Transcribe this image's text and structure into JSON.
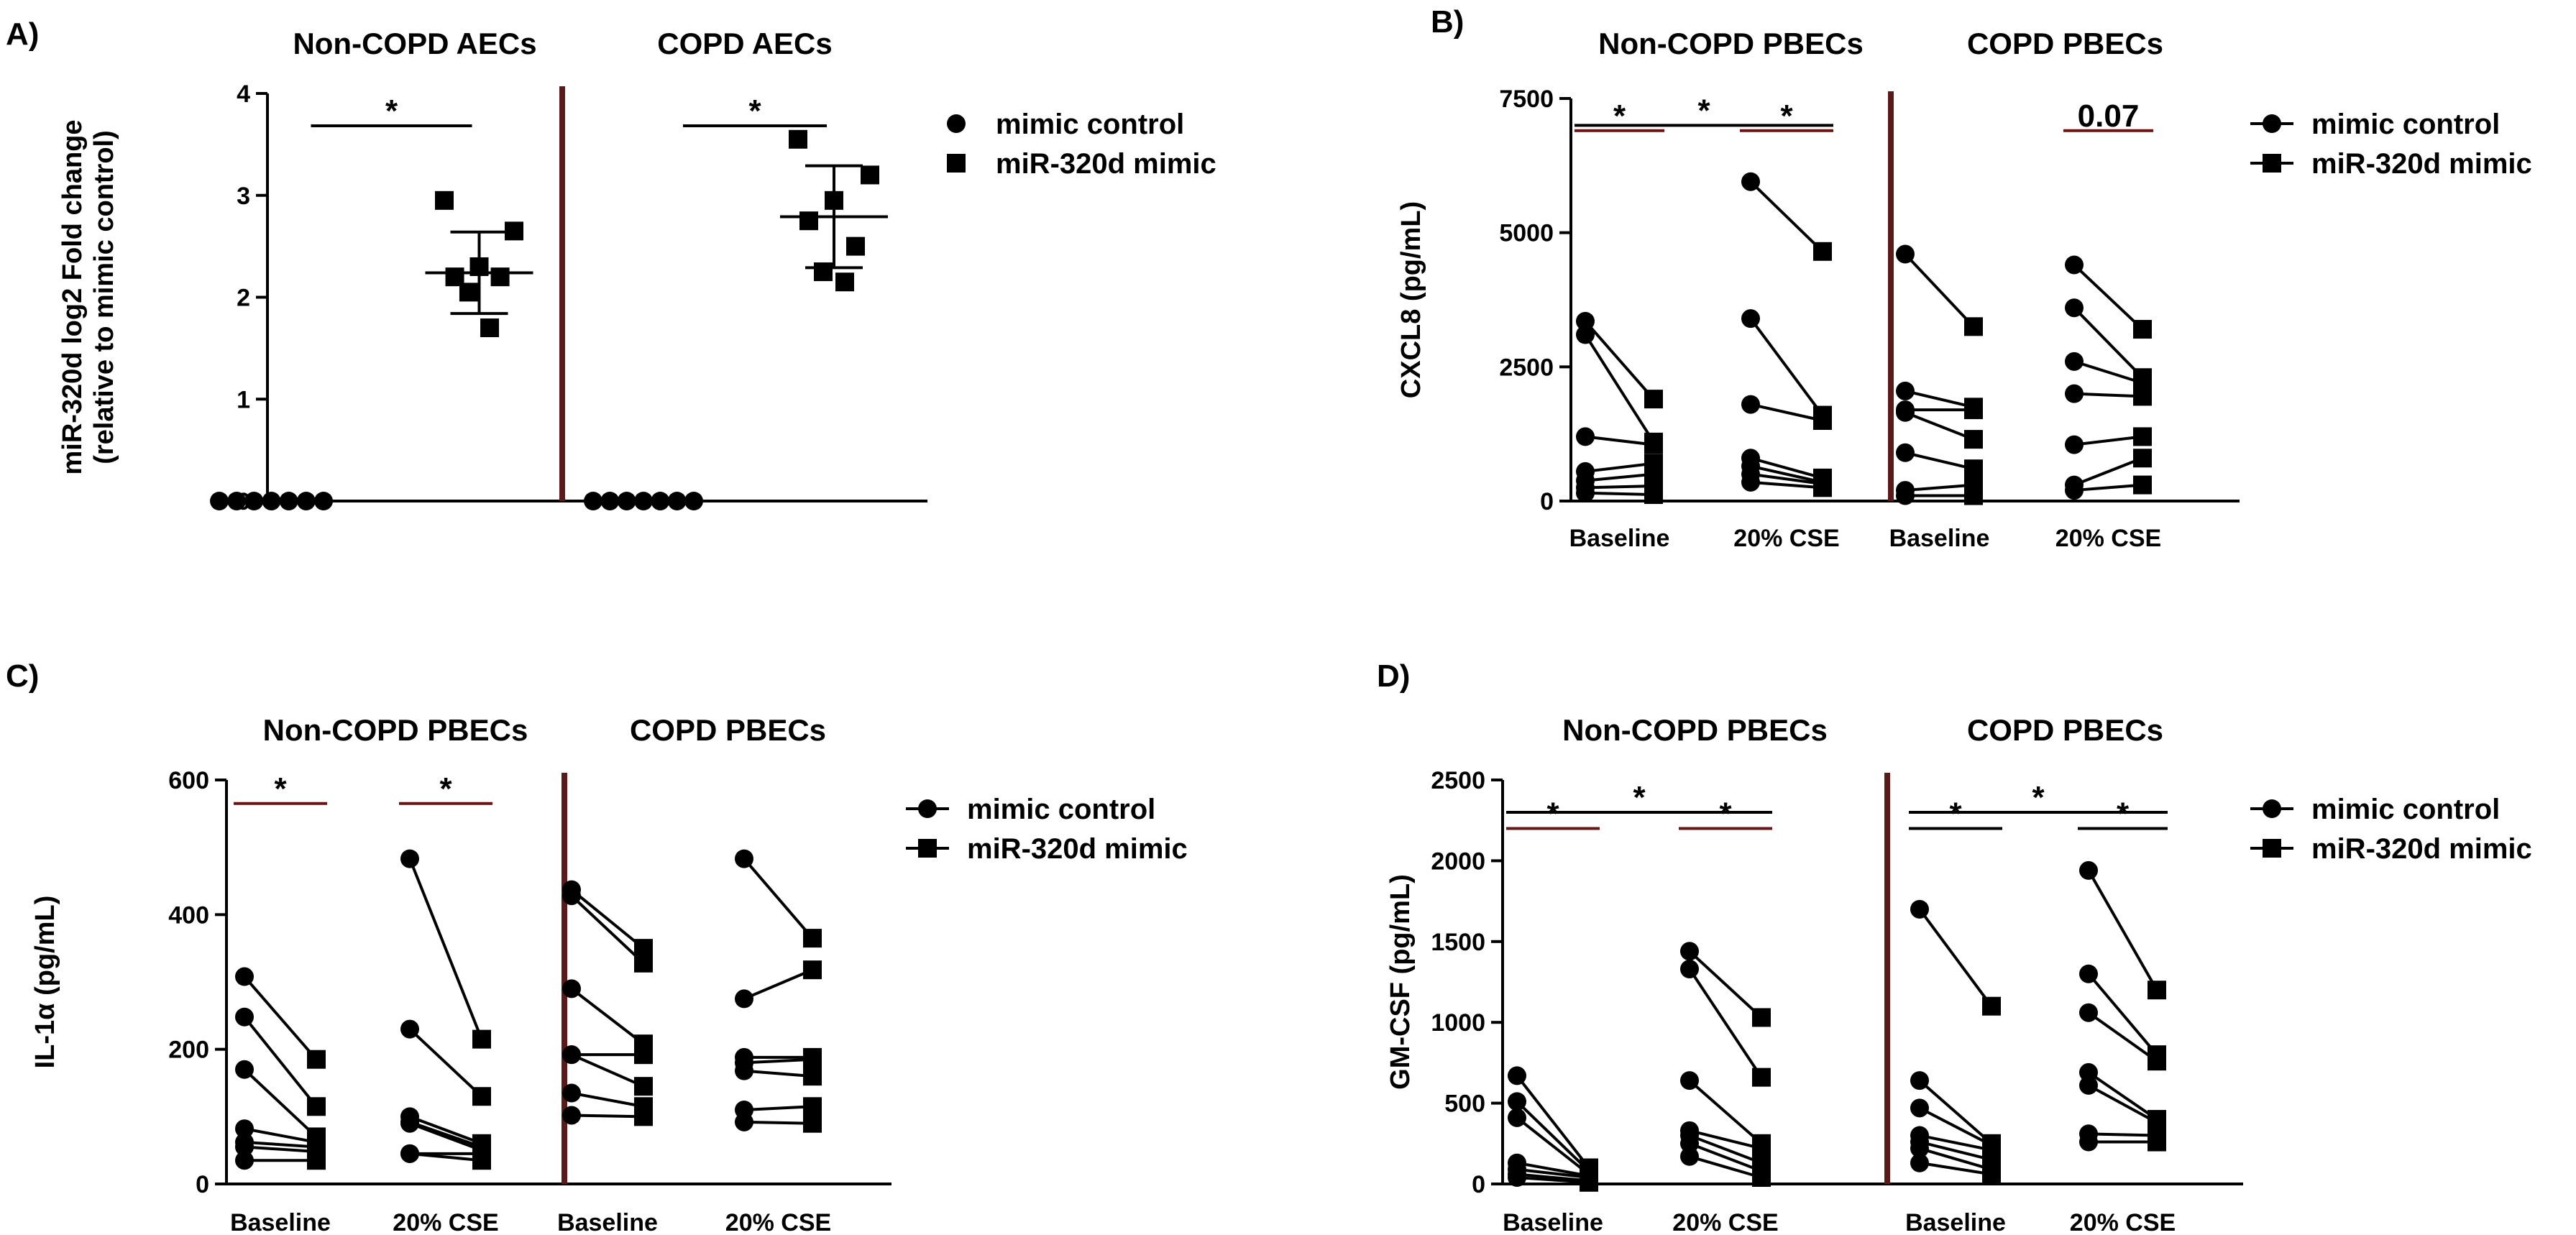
{
  "panels": [
    {
      "label": "A)",
      "chart_data": {
        "type": "scatter",
        "group_titles": [
          "Non-COPD AECs",
          "COPD AECs"
        ],
        "ylabel": "miR-320d log2 Fold change\n(relative to mimic control)",
        "ylim": [
          0,
          4
        ],
        "yticks": [
          "0",
          "1",
          "2",
          "3",
          "4"
        ],
        "legend": {
          "entries": [
            "mimic control",
            "miR-320d mimic"
          ],
          "placement": "right"
        },
        "groups": [
          {
            "mimic_control": [
              0,
              0,
              0,
              0,
              0,
              0,
              0
            ],
            "mir320d_mimic": {
              "values": [
                2.95,
                2.65,
                2.3,
                2.2,
                2.2,
                2.05,
                1.7
              ],
              "mean": 2.24,
              "sd": 0.4
            },
            "significance": "*"
          },
          {
            "mimic_control": [
              0,
              0,
              0,
              0,
              0,
              0,
              0
            ],
            "mir320d_mimic": {
              "values": [
                3.55,
                3.2,
                2.95,
                2.75,
                2.5,
                2.25,
                2.15
              ],
              "mean": 2.79,
              "sd": 0.5
            },
            "significance": "*"
          }
        ]
      }
    },
    {
      "label": "B)",
      "chart_data": {
        "type": "line",
        "group_titles": [
          "Non-COPD PBECs",
          "COPD PBECs"
        ],
        "categories": [
          "Baseline",
          "20% CSE",
          "Baseline",
          "20% CSE"
        ],
        "ylabel": "CXCL8 (pg/mL)",
        "ylim": [
          0,
          7500
        ],
        "yticks": [
          "0",
          "2500",
          "5000",
          "7500"
        ],
        "legend": {
          "entries": [
            "mimic control",
            "miR-320d mimic"
          ],
          "placement": "right"
        },
        "conditions": [
          {
            "pairs": [
              [
                3350,
                1900
              ],
              [
                3100,
                1100
              ],
              [
                1200,
                1050
              ],
              [
                550,
                700
              ],
              [
                380,
                500
              ],
              [
                250,
                280
              ],
              [
                150,
                120
              ]
            ]
          },
          {
            "pairs": [
              [
                5950,
                4650
              ],
              [
                3400,
                1600
              ],
              [
                1800,
                1500
              ],
              [
                800,
                430
              ],
              [
                650,
                350
              ],
              [
                500,
                320
              ],
              [
                350,
                250
              ]
            ]
          },
          {
            "pairs": [
              [
                4600,
                3250
              ],
              [
                2050,
                1750
              ],
              [
                1700,
                1700
              ],
              [
                1650,
                1150
              ],
              [
                900,
                600
              ],
              [
                200,
                300
              ],
              [
                100,
                100
              ]
            ]
          },
          {
            "pairs": [
              [
                4400,
                3200
              ],
              [
                3600,
                2300
              ],
              [
                2600,
                2200
              ],
              [
                2000,
                1950
              ],
              [
                1050,
                1200
              ],
              [
                300,
                800
              ],
              [
                200,
                300
              ]
            ]
          }
        ],
        "annotations": [
          {
            "from": 0,
            "to": 0,
            "text": "*",
            "level": 6900,
            "color": "#6b1414"
          },
          {
            "from": 1,
            "to": 1,
            "text": "*",
            "level": 6900,
            "color": "#6b1414"
          },
          {
            "from": 0,
            "to": 1,
            "text": "*",
            "level": 7000,
            "color": "#000000"
          },
          {
            "from": 3,
            "to": 3,
            "text": "0.07",
            "level": 6900,
            "color": "#6b1414"
          }
        ]
      }
    },
    {
      "label": "C)",
      "chart_data": {
        "type": "line",
        "group_titles": [
          "Non-COPD PBECs",
          "COPD PBECs"
        ],
        "categories": [
          "Baseline",
          "20% CSE",
          "Baseline",
          "20% CSE"
        ],
        "ylabel": "IL-1α (pg/mL)",
        "ylim": [
          0,
          600
        ],
        "yticks": [
          "0",
          "200",
          "400",
          "600"
        ],
        "legend": {
          "entries": [
            "mimic control",
            "miR-320d mimic"
          ],
          "placement": "right"
        },
        "conditions": [
          {
            "pairs": [
              [
                308,
                185
              ],
              [
                248,
                115
              ],
              [
                170,
                70
              ],
              [
                82,
                62
              ],
              [
                62,
                55
              ],
              [
                55,
                48
              ],
              [
                35,
                35
              ]
            ]
          },
          {
            "pairs": [
              [
                483,
                215
              ],
              [
                230,
                130
              ],
              [
                100,
                60
              ],
              [
                92,
                55
              ],
              [
                90,
                50
              ],
              [
                45,
                45
              ],
              [
                45,
                35
              ]
            ]
          },
          {
            "pairs": [
              [
                437,
                350
              ],
              [
                428,
                328
              ],
              [
                290,
                208
              ],
              [
                192,
                192
              ],
              [
                192,
                145
              ],
              [
                135,
                115
              ],
              [
                102,
                100
              ]
            ]
          },
          {
            "pairs": [
              [
                483,
                365
              ],
              [
                275,
                318
              ],
              [
                188,
                188
              ],
              [
                180,
                185
              ],
              [
                168,
                160
              ],
              [
                110,
                115
              ],
              [
                92,
                90
              ]
            ]
          }
        ],
        "annotations": [
          {
            "from": 0,
            "to": 0,
            "text": "*",
            "level": 565,
            "color": "#6b1414"
          },
          {
            "from": 1,
            "to": 1,
            "text": "*",
            "level": 565,
            "color": "#6b1414"
          }
        ]
      }
    },
    {
      "label": "D)",
      "chart_data": {
        "type": "line",
        "group_titles": [
          "Non-COPD PBECs",
          "COPD PBECs"
        ],
        "categories": [
          "Baseline",
          "20% CSE",
          "Baseline",
          "20% CSE"
        ],
        "ylabel": "GM-CSF (pg/mL)",
        "ylim": [
          0,
          2500
        ],
        "yticks": [
          "0",
          "500",
          "1000",
          "1500",
          "2000",
          "2500"
        ],
        "legend": {
          "entries": [
            "mimic control",
            "miR-320d mimic"
          ],
          "placement": "right"
        },
        "conditions": [
          {
            "pairs": [
              [
                670,
                100
              ],
              [
                510,
                80
              ],
              [
                410,
                60
              ],
              [
                130,
                50
              ],
              [
                90,
                40
              ],
              [
                60,
                20
              ],
              [
                40,
                10
              ]
            ]
          },
          {
            "pairs": [
              [
                1440,
                1030
              ],
              [
                1330,
                660
              ],
              [
                640,
                250
              ],
              [
                330,
                220
              ],
              [
                300,
                130
              ],
              [
                250,
                80
              ],
              [
                170,
                40
              ]
            ]
          },
          {
            "pairs": [
              [
                1700,
                1100
              ],
              [
                640,
                250
              ],
              [
                470,
                240
              ],
              [
                300,
                210
              ],
              [
                260,
                150
              ],
              [
                220,
                90
              ],
              [
                130,
                60
              ]
            ]
          },
          {
            "pairs": [
              [
                1940,
                1200
              ],
              [
                1300,
                800
              ],
              [
                1060,
                760
              ],
              [
                690,
                400
              ],
              [
                610,
                380
              ],
              [
                310,
                300
              ],
              [
                260,
                260
              ]
            ]
          }
        ],
        "annotations": [
          {
            "from": 0,
            "to": 0,
            "text": "*",
            "level": 2200,
            "color": "#6b1414"
          },
          {
            "from": 1,
            "to": 1,
            "text": "*",
            "level": 2200,
            "color": "#6b1414"
          },
          {
            "from": 0,
            "to": 1,
            "text": "*",
            "level": 2300,
            "color": "#000000"
          },
          {
            "from": 2,
            "to": 2,
            "text": "*",
            "level": 2200,
            "color": "#000000"
          },
          {
            "from": 3,
            "to": 3,
            "text": "*",
            "level": 2200,
            "color": "#000000"
          },
          {
            "from": 2,
            "to": 3,
            "text": "*",
            "level": 2300,
            "color": "#000000"
          }
        ]
      }
    }
  ],
  "colors": {
    "divider": "#5a1a1a",
    "ink": "#000000"
  }
}
